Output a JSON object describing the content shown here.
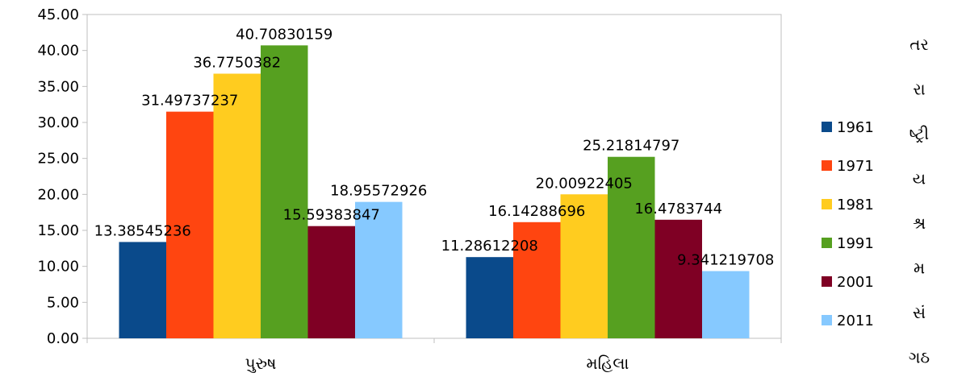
{
  "chart_data": {
    "type": "bar",
    "categories": [
      "પુરુષ",
      "મહિલા"
    ],
    "series": [
      {
        "name": "1961",
        "color": "#0A4A8B",
        "values": [
          13.38545236,
          11.28612208
        ]
      },
      {
        "name": "1971",
        "color": "#FF4510",
        "values": [
          31.49737237,
          16.14288696
        ]
      },
      {
        "name": "1981",
        "color": "#FFCC1F",
        "values": [
          36.7750382,
          20.00922405
        ]
      },
      {
        "name": "1991",
        "color": "#56A020",
        "values": [
          40.70830159,
          25.21814797
        ]
      },
      {
        "name": "2001",
        "color": "#7F0024",
        "values": [
          15.59383847,
          16.4783744
        ]
      },
      {
        "name": "2011",
        "color": "#86C9FF",
        "values": [
          18.95572926,
          9.341219708
        ]
      }
    ],
    "data_labels": [
      [
        "13.38545236",
        "11.28612208"
      ],
      [
        "31.49737237",
        "16.14288696"
      ],
      [
        "36.7750382",
        "20.00922405"
      ],
      [
        "40.70830159",
        "25.21814797"
      ],
      [
        "15.59383847",
        "16.4783744"
      ],
      [
        "18.95572926",
        "9.341219708"
      ]
    ],
    "ylim": [
      0,
      45
    ],
    "y_ticks": [
      "0.00",
      "5.00",
      "10.00",
      "15.00",
      "20.00",
      "25.00",
      "30.00",
      "35.00",
      "40.00",
      "45.00"
    ],
    "grid": false,
    "legend_position": "right",
    "title": "",
    "xlabel": "",
    "ylabel": ""
  },
  "side_text": [
    "તર",
    "રા",
    "ષ્ટ્રી",
    "ય",
    "શ્ર",
    "મ",
    "સં",
    "ગઠ"
  ]
}
